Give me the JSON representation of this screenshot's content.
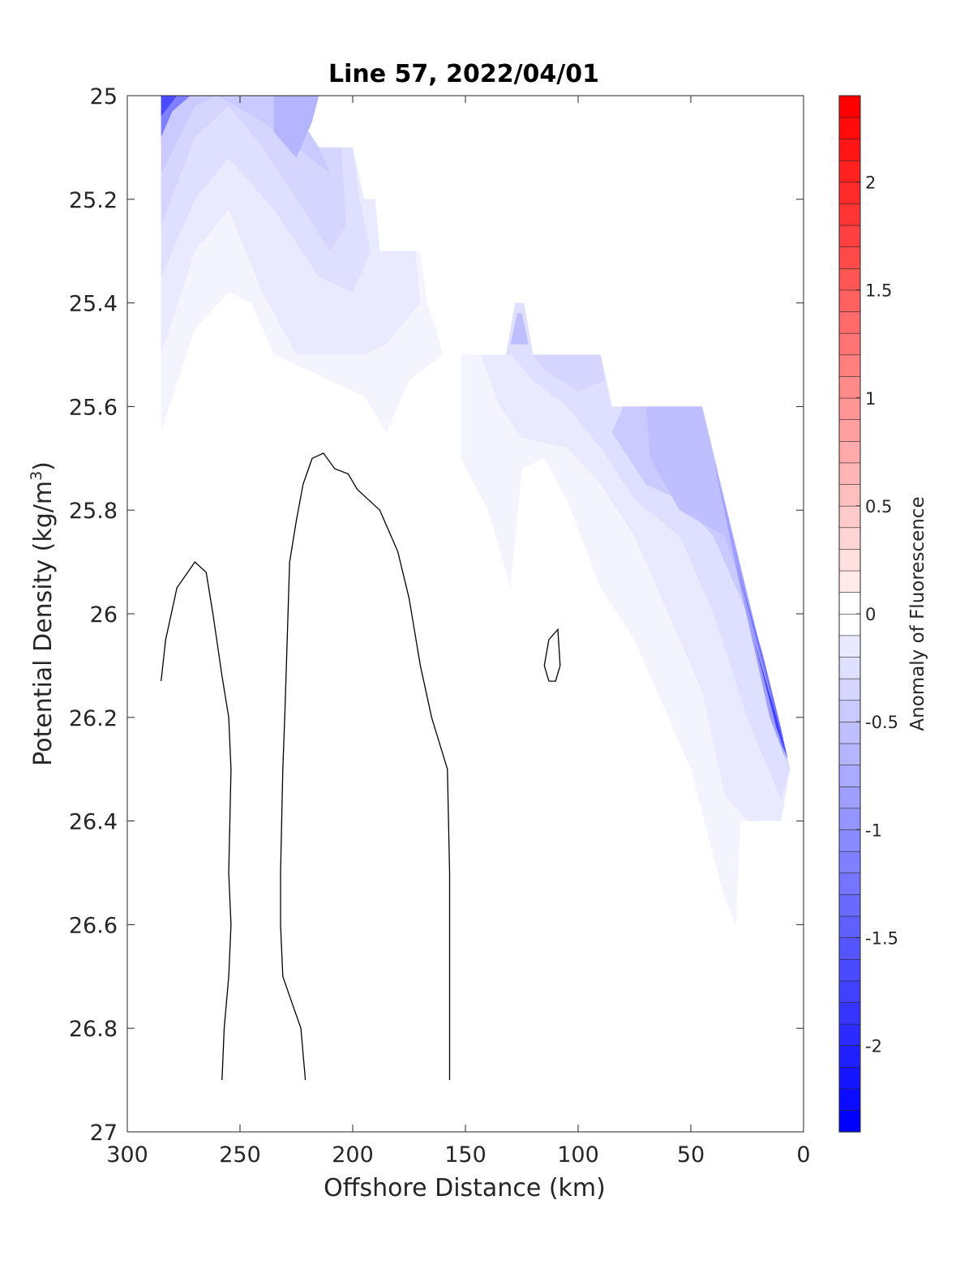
{
  "chart_data": {
    "type": "contour",
    "title": "Line 57, 2022/04/01",
    "xlabel": "Offshore Distance (km)",
    "ylabel_main": "Potential Density (kg/m",
    "ylabel_sup": "3",
    "ylabel_close": ")",
    "xlim": [
      300,
      0
    ],
    "x_reversed": true,
    "ylim": [
      25,
      27
    ],
    "y_reversed": true,
    "xticks": [
      300,
      250,
      200,
      150,
      100,
      50,
      0
    ],
    "xtick_labels": [
      "300",
      "250",
      "200",
      "150",
      "100",
      "50",
      "0"
    ],
    "yticks": [
      25,
      25.2,
      25.4,
      25.6,
      25.8,
      26,
      26.2,
      26.4,
      26.6,
      26.8,
      27
    ],
    "ytick_labels": [
      "25",
      "25.2",
      "25.4",
      "25.6",
      "25.8",
      "26",
      "26.2",
      "26.4",
      "26.6",
      "26.8",
      "27"
    ],
    "colorbar": {
      "label": "Anomaly of Fluorescence",
      "range": [
        -2.4,
        2.4
      ],
      "step": 0.1,
      "ticks": [
        2,
        1.5,
        1,
        0.5,
        0,
        -0.5,
        -1,
        -1.5,
        -2
      ],
      "tick_labels": [
        "2",
        "1.5",
        "1",
        "0.5",
        "0",
        "-0.5",
        "-1",
        "-1.5",
        "-2"
      ],
      "color_min": "#0000ff",
      "color_zero": "#ffffff",
      "color_max": "#ff0000"
    },
    "filled_regions": [
      {
        "level": -0.1,
        "points": [
          [
            285,
            25
          ],
          [
            230,
            25
          ],
          [
            215,
            25.1
          ],
          [
            200,
            25.1
          ],
          [
            195,
            25.2
          ],
          [
            190,
            25.2
          ],
          [
            188,
            25.3
          ],
          [
            170,
            25.3
          ],
          [
            167,
            25.4
          ],
          [
            163,
            25.45
          ],
          [
            160,
            25.5
          ],
          [
            175,
            25.55
          ],
          [
            185,
            25.65
          ],
          [
            195,
            25.58
          ],
          [
            210,
            25.55
          ],
          [
            235,
            25.5
          ],
          [
            245,
            25.4
          ],
          [
            255,
            25.38
          ],
          [
            270,
            25.45
          ],
          [
            285,
            25.65
          ]
        ]
      },
      {
        "level": -0.2,
        "points": [
          [
            285,
            25
          ],
          [
            230,
            25
          ],
          [
            215,
            25.1
          ],
          [
            200,
            25.1
          ],
          [
            195,
            25.2
          ],
          [
            190,
            25.2
          ],
          [
            188,
            25.3
          ],
          [
            172,
            25.3
          ],
          [
            170,
            25.4
          ],
          [
            185,
            25.48
          ],
          [
            195,
            25.5
          ],
          [
            225,
            25.5
          ],
          [
            240,
            25.38
          ],
          [
            255,
            25.22
          ],
          [
            270,
            25.3
          ],
          [
            285,
            25.5
          ]
        ]
      },
      {
        "level": -0.3,
        "points": [
          [
            285,
            25
          ],
          [
            230,
            25
          ],
          [
            215,
            25.1
          ],
          [
            200,
            25.1
          ],
          [
            197,
            25.2
          ],
          [
            192,
            25.3
          ],
          [
            200,
            25.38
          ],
          [
            215,
            25.35
          ],
          [
            235,
            25.22
          ],
          [
            255,
            25.12
          ],
          [
            270,
            25.2
          ],
          [
            285,
            25.35
          ]
        ]
      },
      {
        "level": -0.4,
        "points": [
          [
            285,
            25
          ],
          [
            230,
            25
          ],
          [
            215,
            25.1
          ],
          [
            205,
            25.1
          ],
          [
            203,
            25.25
          ],
          [
            210,
            25.3
          ],
          [
            225,
            25.2
          ],
          [
            240,
            25.1
          ],
          [
            255,
            25.02
          ],
          [
            270,
            25.08
          ],
          [
            285,
            25.25
          ]
        ]
      },
      {
        "level": -0.5,
        "points": [
          [
            285,
            25
          ],
          [
            230,
            25
          ],
          [
            215,
            25.1
          ],
          [
            210,
            25.15
          ],
          [
            225,
            25.1
          ],
          [
            240,
            25.05
          ],
          [
            260,
            25.0
          ],
          [
            270,
            25.02
          ],
          [
            285,
            25.15
          ]
        ]
      },
      {
        "level": -0.7,
        "points": [
          [
            285,
            25
          ],
          [
            260,
            25
          ],
          [
            235,
            25.0
          ],
          [
            235,
            25.07
          ],
          [
            225,
            25.12
          ],
          [
            218,
            25.05
          ],
          [
            215,
            25.0
          ],
          [
            280,
            25.0
          ],
          [
            285,
            25.05
          ]
        ]
      },
      {
        "level": -1.2,
        "points": [
          [
            285,
            25
          ],
          [
            272,
            25
          ],
          [
            280,
            25.03
          ],
          [
            285,
            25.08
          ]
        ]
      },
      {
        "level": -1.7,
        "points": [
          [
            285,
            25
          ],
          [
            278,
            25
          ],
          [
            285,
            25.04
          ]
        ]
      },
      {
        "level": -0.1,
        "points": [
          [
            152,
            25.5
          ],
          [
            90,
            25.5
          ],
          [
            85,
            25.6
          ],
          [
            45,
            25.6
          ],
          [
            12,
            26.2
          ],
          [
            6,
            26.3
          ],
          [
            10,
            26.4
          ],
          [
            28,
            26.4
          ],
          [
            30,
            26.6
          ],
          [
            35,
            26.55
          ],
          [
            50,
            26.3
          ],
          [
            60,
            26.2
          ],
          [
            75,
            26.05
          ],
          [
            90,
            25.95
          ],
          [
            105,
            25.78
          ],
          [
            115,
            25.7
          ],
          [
            125,
            25.72
          ],
          [
            130,
            25.95
          ],
          [
            140,
            25.8
          ],
          [
            152,
            25.7
          ]
        ]
      },
      {
        "level": -0.2,
        "points": [
          [
            143,
            25.5
          ],
          [
            90,
            25.5
          ],
          [
            85,
            25.6
          ],
          [
            45,
            25.6
          ],
          [
            12,
            26.2
          ],
          [
            6,
            26.3
          ],
          [
            10,
            26.4
          ],
          [
            25,
            26.4
          ],
          [
            35,
            26.35
          ],
          [
            45,
            26.15
          ],
          [
            60,
            26.0
          ],
          [
            75,
            25.85
          ],
          [
            90,
            25.75
          ],
          [
            105,
            25.68
          ],
          [
            125,
            25.66
          ],
          [
            135,
            25.6
          ]
        ]
      },
      {
        "level": -0.3,
        "points": [
          [
            130,
            25.5
          ],
          [
            90,
            25.5
          ],
          [
            85,
            25.6
          ],
          [
            45,
            25.6
          ],
          [
            12,
            26.2
          ],
          [
            6,
            26.3
          ],
          [
            10,
            26.36
          ],
          [
            25,
            26.2
          ],
          [
            40,
            26.0
          ],
          [
            55,
            25.85
          ],
          [
            75,
            25.78
          ],
          [
            90,
            25.68
          ],
          [
            105,
            25.6
          ],
          [
            120,
            25.55
          ]
        ]
      },
      {
        "level": -0.4,
        "points": [
          [
            120,
            25.5
          ],
          [
            90,
            25.5
          ],
          [
            88,
            25.55
          ],
          [
            100,
            25.57
          ],
          [
            115,
            25.53
          ]
        ]
      },
      {
        "level": -0.5,
        "points": [
          [
            80,
            25.6
          ],
          [
            45,
            25.6
          ],
          [
            12,
            26.2
          ],
          [
            6,
            26.3
          ],
          [
            15,
            26.2
          ],
          [
            25,
            26.0
          ],
          [
            40,
            25.85
          ],
          [
            55,
            25.78
          ],
          [
            70,
            25.75
          ],
          [
            85,
            25.65
          ]
        ]
      },
      {
        "level": -0.6,
        "points": [
          [
            70,
            25.6
          ],
          [
            45,
            25.6
          ],
          [
            20,
            26.05
          ],
          [
            12,
            26.2
          ],
          [
            8,
            26.28
          ],
          [
            20,
            26.05
          ],
          [
            35,
            25.85
          ],
          [
            55,
            25.8
          ],
          [
            68,
            25.7
          ]
        ]
      },
      {
        "level": -0.9,
        "points": [
          [
            40,
            25.7
          ],
          [
            20,
            26.05
          ],
          [
            12,
            26.2
          ],
          [
            8,
            26.28
          ],
          [
            15,
            26.2
          ],
          [
            28,
            25.95
          ]
        ]
      },
      {
        "level": -1.3,
        "points": [
          [
            30,
            25.9
          ],
          [
            15,
            26.15
          ],
          [
            10,
            26.25
          ],
          [
            7,
            26.28
          ],
          [
            10,
            26.22
          ],
          [
            18,
            26.08
          ]
        ]
      },
      {
        "level": -1.8,
        "points": [
          [
            22,
            26.05
          ],
          [
            12,
            26.2
          ],
          [
            7,
            26.28
          ],
          [
            12,
            26.22
          ]
        ]
      },
      {
        "level": -0.3,
        "points": [
          [
            132,
            25.5
          ],
          [
            128,
            25.4
          ],
          [
            124,
            25.4
          ],
          [
            120,
            25.5
          ]
        ]
      },
      {
        "level": -0.6,
        "points": [
          [
            130,
            25.48
          ],
          [
            127,
            25.42
          ],
          [
            125,
            25.42
          ],
          [
            122,
            25.48
          ]
        ]
      }
    ],
    "zero_contours": [
      [
        [
          285,
          26.13
        ],
        [
          283,
          26.05
        ],
        [
          278,
          25.95
        ],
        [
          270,
          25.9
        ],
        [
          265,
          25.92
        ],
        [
          262,
          26.0
        ],
        [
          258,
          26.12
        ],
        [
          255,
          26.2
        ],
        [
          254,
          26.3
        ],
        [
          255,
          26.5
        ],
        [
          254,
          26.6
        ],
        [
          255,
          26.7
        ],
        [
          257,
          26.8
        ],
        [
          258,
          26.9
        ]
      ],
      [
        [
          221,
          26.9
        ],
        [
          223,
          26.8
        ],
        [
          227,
          26.75
        ],
        [
          231,
          26.7
        ],
        [
          232,
          26.6
        ],
        [
          232,
          26.5
        ],
        [
          231,
          26.3
        ],
        [
          230,
          26.18
        ],
        [
          228,
          25.9
        ],
        [
          225,
          25.82
        ],
        [
          222,
          25.75
        ],
        [
          218,
          25.7
        ],
        [
          213,
          25.69
        ],
        [
          208,
          25.72
        ],
        [
          202,
          25.73
        ],
        [
          198,
          25.76
        ],
        [
          188,
          25.8
        ],
        [
          180,
          25.88
        ],
        [
          175,
          25.97
        ],
        [
          170,
          26.1
        ],
        [
          165,
          26.2
        ],
        [
          158,
          26.3
        ],
        [
          157,
          26.5
        ],
        [
          157,
          26.6
        ],
        [
          157,
          26.7
        ],
        [
          157,
          26.8
        ],
        [
          157,
          26.9
        ]
      ],
      [
        [
          113,
          26.13
        ],
        [
          115,
          26.1
        ],
        [
          113,
          26.05
        ],
        [
          109,
          26.03
        ],
        [
          108,
          26.1
        ],
        [
          110,
          26.13
        ],
        [
          113,
          26.13
        ]
      ]
    ]
  }
}
